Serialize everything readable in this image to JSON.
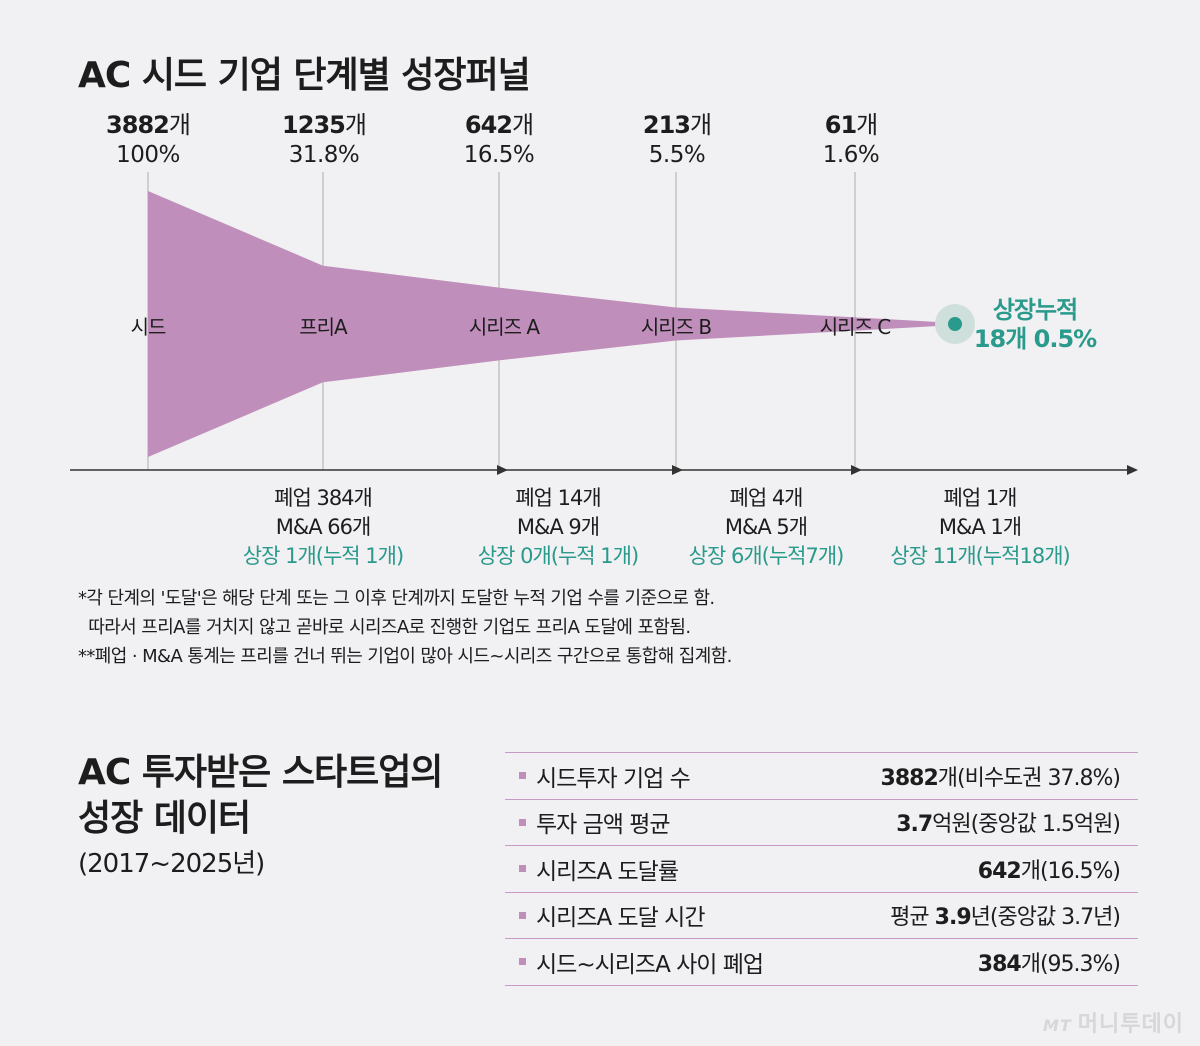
{
  "title": "AC 시드 기업 단계별 성장퍼널",
  "chart_data": {
    "type": "area",
    "title": "AC 시드 기업 단계별 성장퍼널",
    "stages": [
      {
        "name": "시드",
        "count": "3882",
        "unit": "개",
        "percent": "100%",
        "value": 3882
      },
      {
        "name": "프리A",
        "count": "1235",
        "unit": "개",
        "percent": "31.8%",
        "value": 1235
      },
      {
        "name": "시리즈 A",
        "count": "642",
        "unit": "개",
        "percent": "16.5%",
        "value": 642
      },
      {
        "name": "시리즈 B",
        "count": "213",
        "unit": "개",
        "percent": "5.5%",
        "value": 213
      },
      {
        "name": "시리즈 C",
        "count": "61",
        "unit": "개",
        "percent": "1.6%",
        "value": 61
      }
    ],
    "ipo": {
      "title": "상장누적",
      "detail": "18개 0.5%",
      "value": 18
    },
    "exits": [
      {
        "closed": "폐업 384개",
        "ma": "M&A 66개",
        "ipo": "상장 1개(누적 1개)"
      },
      {
        "closed": "폐업 14개",
        "ma": "M&A 9개",
        "ipo": "상장 0개(누적 1개)"
      },
      {
        "closed": "폐업 4개",
        "ma": "M&A 5개",
        "ipo": "상장 6개(누적7개)"
      },
      {
        "closed": "폐업 1개",
        "ma": "M&A 1개",
        "ipo": "상장 11개(누적18개)"
      }
    ]
  },
  "colors": {
    "funnel": "#c08ebb",
    "teal": "#2a9a8c",
    "accent_line": "#c99ac4"
  },
  "footnotes": [
    "*각 단계의 '도달'은 해당 단계 또는 그 이후 단계까지 도달한 누적 기업 수를 기준으로 함.",
    "  따라서 프리A를 거치지 않고 곧바로 시리즈A로 진행한 기업도 프리A 도달에 포함됨.",
    "**폐업 · M&A 통계는 프리를 건너 뛰는 기업이 많아 시드~시리즈 구간으로 통합해 집계함."
  ],
  "section2": {
    "title_line1": "AC 투자받은 스타트업의",
    "title_line2": "성장 데이터",
    "period": "(2017~2025년)",
    "rows": [
      {
        "label": "시드투자 기업 수",
        "prefix": "",
        "bold": "3882",
        "rest": "개(비수도권 37.8%)"
      },
      {
        "label": "투자 금액 평균",
        "prefix": "",
        "bold": "3.7",
        "rest": "억원(중앙값 1.5억원)"
      },
      {
        "label": "시리즈A 도달률",
        "prefix": "",
        "bold": "642",
        "rest": "개(16.5%)"
      },
      {
        "label": "시리즈A 도달 시간",
        "prefix": "평균 ",
        "bold": "3.9",
        "rest": "년(중앙값 3.7년)"
      },
      {
        "label": "시드~시리즈A 사이 폐업",
        "prefix": "",
        "bold": "384",
        "rest": "개(95.3%)"
      }
    ]
  },
  "watermark": {
    "logo": "MT",
    "name": "머니투데이"
  }
}
